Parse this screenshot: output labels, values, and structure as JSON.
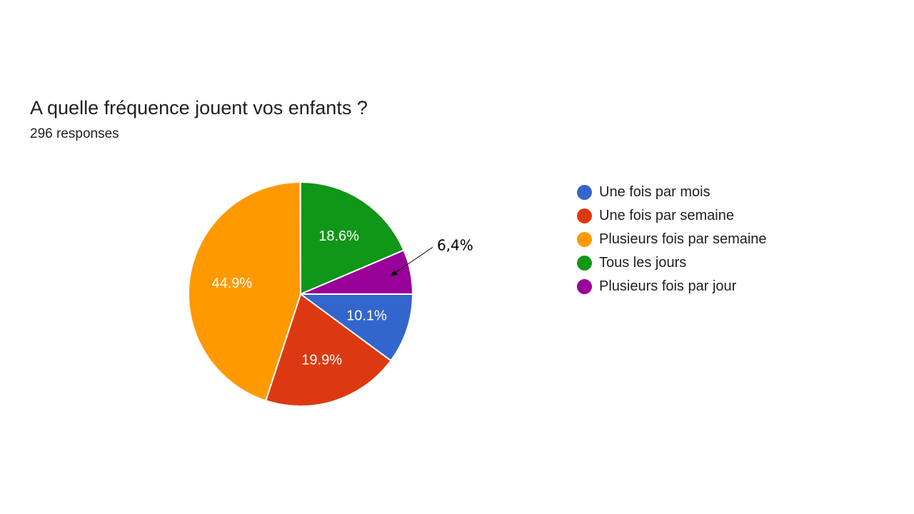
{
  "chart_data": {
    "type": "pie",
    "title": "A quelle fréquence jouent vos enfants ?",
    "subtitle": "296 responses",
    "legend_position": "right",
    "slices": [
      {
        "label": "Une fois par mois",
        "value": 10.1,
        "display": "10.1%",
        "color": "#3366cc"
      },
      {
        "label": "Une fois par semaine",
        "value": 19.9,
        "display": "19.9%",
        "color": "#dc3912"
      },
      {
        "label": "Plusieurs fois par semaine",
        "value": 44.9,
        "display": "44.9%",
        "color": "#ff9900"
      },
      {
        "label": "Tous les jours",
        "value": 18.6,
        "display": "18.6%",
        "color": "#109618"
      },
      {
        "label": "Plusieurs fois par jour",
        "value": 6.4,
        "display": "6,4%",
        "color": "#990099"
      }
    ]
  }
}
